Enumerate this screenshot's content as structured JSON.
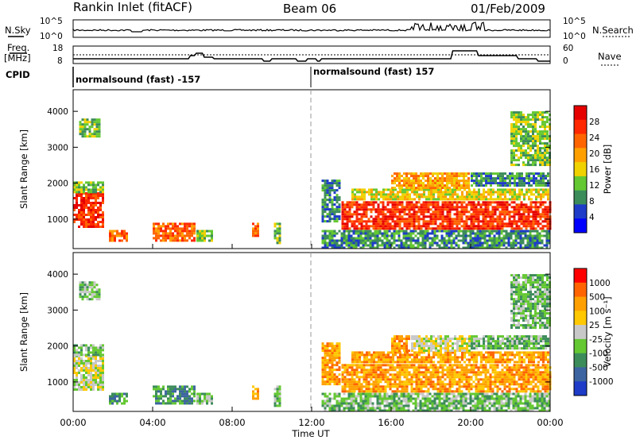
{
  "header": {
    "title": "Rankin Inlet (fitACF)",
    "beam": "Beam 06",
    "date": "01/Feb/2009"
  },
  "status_panel": {
    "left_labels": {
      "nsky": "N.Sky",
      "freq_line1": "Freq.",
      "freq_line2": "[MHz]",
      "cpid": "CPID"
    },
    "right_labels": {
      "nsearch": "N.Search",
      "nave": "Nave"
    },
    "noise_ticks_left": [
      "10^5",
      "10^0"
    ],
    "noise_ticks_right": [
      "10^5",
      "10^0"
    ],
    "freq_ticks": [
      "18",
      "8"
    ],
    "nave_ticks": [
      "60",
      "0"
    ],
    "cpid_segments": [
      {
        "label": "normalsound (fast) -157",
        "start_hour": 0,
        "end_hour": 12
      },
      {
        "label": "normalsound (fast) 157",
        "start_hour": 12,
        "end_hour": 24
      }
    ]
  },
  "colors": {
    "power_scale": [
      "#0000ff",
      "#1e3cc8",
      "#3c8c5a",
      "#64c832",
      "#f0d200",
      "#ffa000",
      "#ff6400",
      "#ff2800",
      "#e60000"
    ],
    "velocity_scale": [
      "#1e3cc8",
      "#3c64a0",
      "#3c8c5a",
      "#64c832",
      "#c8c8c8",
      "#ffc800",
      "#ffa000",
      "#ff6400",
      "#ff0000"
    ]
  },
  "chart_data": [
    {
      "type": "heatmap",
      "name": "power",
      "ylabel": "Slant Range [km]",
      "yticks": [
        1000,
        2000,
        3000,
        4000
      ],
      "ylim": [
        180,
        4600
      ],
      "xlim": [
        0,
        24
      ],
      "colorbar_label": "Power [dB]",
      "colorbar_ticks": [
        "28",
        "24",
        "20",
        "16",
        "12",
        "8",
        "4"
      ],
      "colorbar_range": [
        0,
        32
      ],
      "regions": [
        {
          "t0": 0.0,
          "t1": 1.5,
          "r0": 750,
          "r1": 1750,
          "level": 26
        },
        {
          "t0": 0.0,
          "t1": 1.5,
          "r0": 1750,
          "r1": 2050,
          "level": 12
        },
        {
          "t0": 1.8,
          "t1": 2.8,
          "r0": 400,
          "r1": 700,
          "level": 24
        },
        {
          "t0": 4.0,
          "t1": 6.2,
          "r0": 380,
          "r1": 900,
          "level": 24
        },
        {
          "t0": 6.2,
          "t1": 7.0,
          "r0": 350,
          "r1": 700,
          "level": 12
        },
        {
          "t0": 9.0,
          "t1": 9.3,
          "r0": 500,
          "r1": 900,
          "level": 24
        },
        {
          "t0": 10.1,
          "t1": 10.5,
          "r0": 300,
          "r1": 900,
          "level": 10
        },
        {
          "t0": 12.5,
          "t1": 24.0,
          "r0": 200,
          "r1": 700,
          "level": 6
        },
        {
          "t0": 12.5,
          "t1": 13.5,
          "r0": 900,
          "r1": 2100,
          "level": 8
        },
        {
          "t0": 13.5,
          "t1": 24.0,
          "r0": 700,
          "r1": 1500,
          "level": 26
        },
        {
          "t0": 14.0,
          "t1": 24.0,
          "r0": 1500,
          "r1": 1850,
          "level": 14
        },
        {
          "t0": 16.0,
          "t1": 20.0,
          "r0": 1850,
          "r1": 2300,
          "level": 20
        },
        {
          "t0": 20.0,
          "t1": 24.0,
          "r0": 1900,
          "r1": 2300,
          "level": 8
        },
        {
          "t0": 22.0,
          "t1": 24.0,
          "r0": 2500,
          "r1": 4000,
          "level": 12
        },
        {
          "t0": 0.3,
          "t1": 1.4,
          "r0": 3300,
          "r1": 3800,
          "level": 12
        }
      ]
    },
    {
      "type": "heatmap",
      "name": "velocity",
      "ylabel": "Slant Range [km]",
      "xlabel": "Time UT",
      "yticks": [
        1000,
        2000,
        3000,
        4000
      ],
      "ylim": [
        180,
        4600
      ],
      "xlim": [
        0,
        24
      ],
      "xticks": [
        "00:00",
        "04:00",
        "08:00",
        "12:00",
        "16:00",
        "20:00",
        "00:00"
      ],
      "colorbar_label": "Velocity [m s⁻¹]",
      "colorbar_ticks": [
        "1000",
        "500",
        "100",
        "25",
        "-25",
        "-100",
        "-500",
        "-1000"
      ],
      "regions": [
        {
          "t0": 0.0,
          "t1": 1.5,
          "r0": 750,
          "r1": 1750,
          "level": 4
        },
        {
          "t0": 0.0,
          "t1": 1.5,
          "r0": 1750,
          "r1": 2050,
          "level": 3
        },
        {
          "t0": 1.8,
          "t1": 2.8,
          "r0": 400,
          "r1": 700,
          "level": 2
        },
        {
          "t0": 4.0,
          "t1": 6.2,
          "r0": 380,
          "r1": 900,
          "level": 2
        },
        {
          "t0": 6.2,
          "t1": 7.0,
          "r0": 350,
          "r1": 700,
          "level": 3
        },
        {
          "t0": 9.0,
          "t1": 9.3,
          "r0": 500,
          "r1": 900,
          "level": 6
        },
        {
          "t0": 10.1,
          "t1": 10.5,
          "r0": 300,
          "r1": 900,
          "level": 3
        },
        {
          "t0": 12.5,
          "t1": 24.0,
          "r0": 200,
          "r1": 700,
          "level": 3
        },
        {
          "t0": 12.5,
          "t1": 13.5,
          "r0": 900,
          "r1": 2100,
          "level": 6
        },
        {
          "t0": 13.5,
          "t1": 24.0,
          "r0": 700,
          "r1": 1500,
          "level": 6
        },
        {
          "t0": 14.0,
          "t1": 24.0,
          "r0": 1500,
          "r1": 1850,
          "level": 6
        },
        {
          "t0": 16.0,
          "t1": 17.0,
          "r0": 1850,
          "r1": 2300,
          "level": 6
        },
        {
          "t0": 17.0,
          "t1": 20.0,
          "r0": 1850,
          "r1": 2300,
          "level": 4
        },
        {
          "t0": 20.0,
          "t1": 24.0,
          "r0": 1900,
          "r1": 2300,
          "level": 3
        },
        {
          "t0": 22.0,
          "t1": 24.0,
          "r0": 2500,
          "r1": 4000,
          "level": 3
        },
        {
          "t0": 0.3,
          "t1": 1.4,
          "r0": 3300,
          "r1": 3800,
          "level": 3
        }
      ]
    }
  ]
}
